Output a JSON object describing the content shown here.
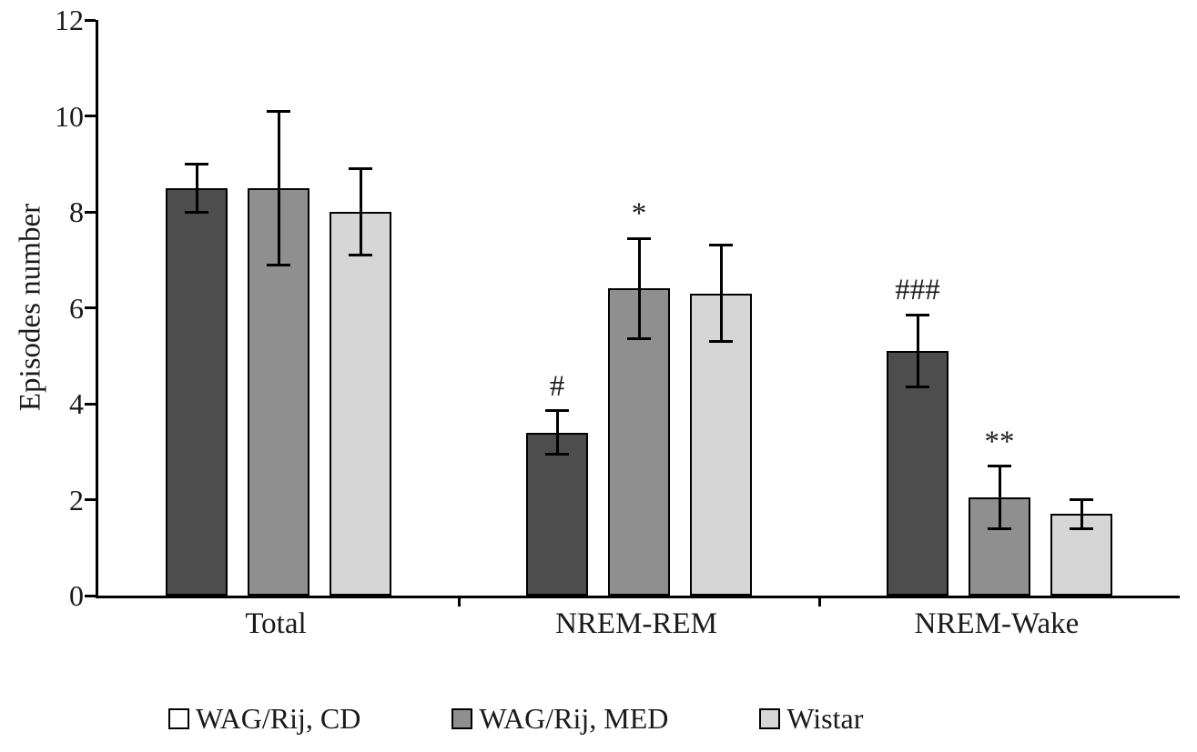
{
  "chart_data": {
    "type": "bar",
    "title": "",
    "xlabel": "",
    "ylabel": "Episodes number",
    "ylim": [
      0,
      12
    ],
    "yticks": [
      0,
      2,
      4,
      6,
      8,
      10,
      12
    ],
    "grid": false,
    "legend_position": "bottom",
    "categories": [
      "Total",
      "NREM-REM",
      "NREM-Wake"
    ],
    "series": [
      {
        "name": "WAG/Rij, CD",
        "bar_color": "#4d4d4d",
        "legend_swatch_color": "#ffffff",
        "values": [
          8.5,
          3.4,
          5.1
        ],
        "errors": [
          0.5,
          0.45,
          0.75
        ],
        "annotations": [
          "",
          "#",
          "###"
        ]
      },
      {
        "name": "WAG/Rij, MED",
        "bar_color": "#8f8f8f",
        "legend_swatch_color": "#8f8f8f",
        "values": [
          8.5,
          6.4,
          2.05
        ],
        "errors": [
          1.6,
          1.05,
          0.65
        ],
        "annotations": [
          "",
          "*",
          "**"
        ]
      },
      {
        "name": "Wistar",
        "bar_color": "#d6d6d6",
        "legend_swatch_color": "#d6d6d6",
        "values": [
          8.0,
          6.3,
          1.7
        ],
        "errors": [
          0.9,
          1.0,
          0.3
        ],
        "annotations": [
          "",
          "",
          ""
        ]
      }
    ]
  }
}
